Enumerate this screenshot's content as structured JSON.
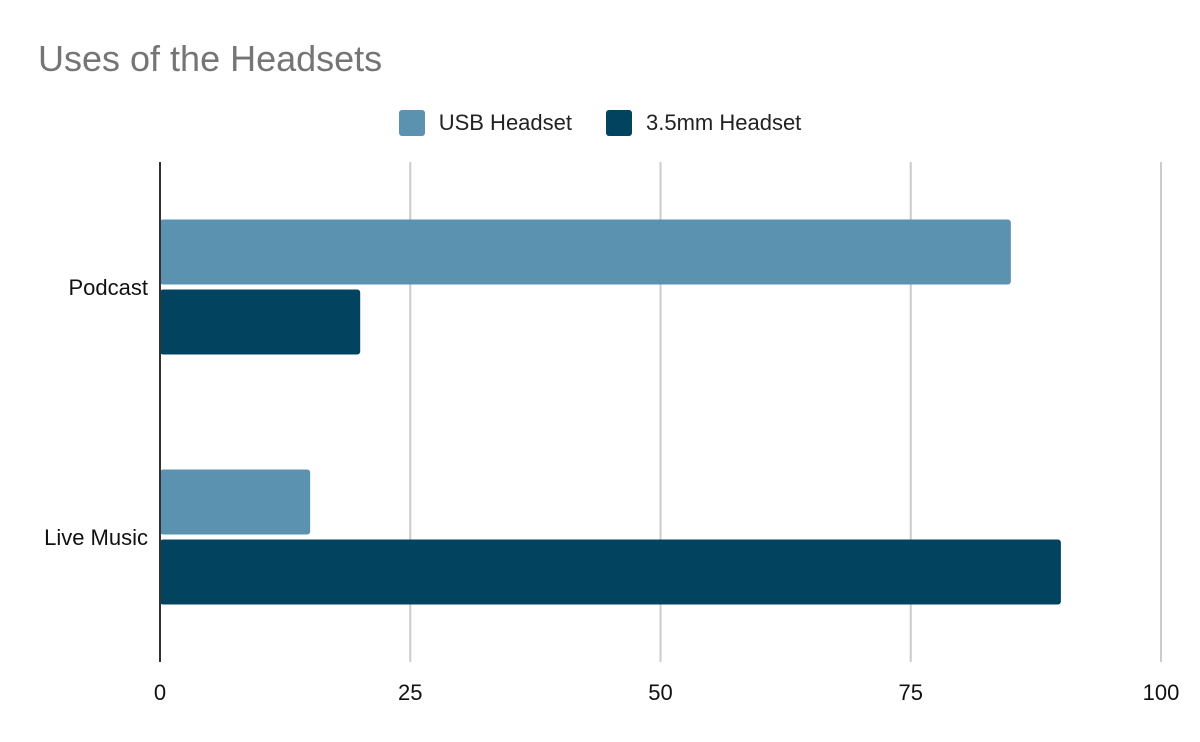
{
  "chart_data": {
    "type": "bar",
    "orientation": "horizontal",
    "title": "Uses of the Headsets",
    "xlabel": "",
    "ylabel": "",
    "categories": [
      "Podcast",
      "Live Music"
    ],
    "series": [
      {
        "name": "USB Headset",
        "color": "#5b92b0",
        "values": [
          85,
          15
        ]
      },
      {
        "name": "3.5mm Headset",
        "color": "#02435f",
        "values": [
          20,
          90
        ]
      }
    ],
    "xlim": [
      0,
      100
    ],
    "xticks": [
      0,
      25,
      50,
      75,
      100
    ],
    "grid": true,
    "legend_position": "top-center"
  }
}
